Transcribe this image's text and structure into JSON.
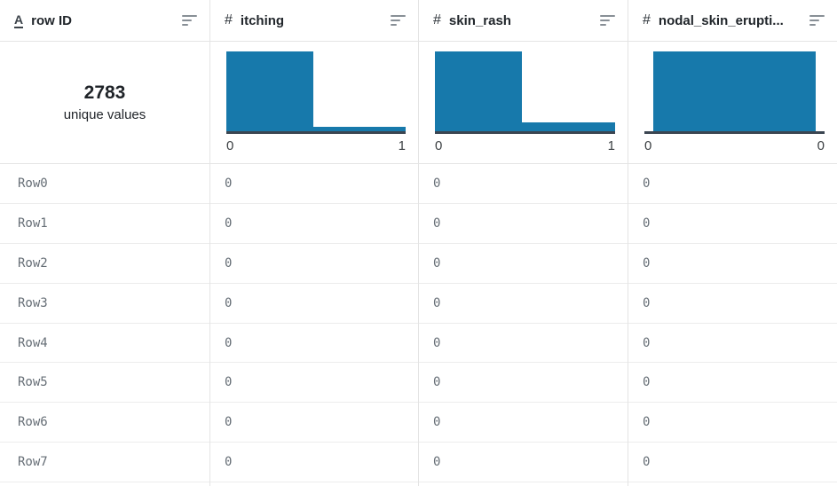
{
  "colors": {
    "bar_fill": "#1779ab",
    "axis_line": "#3b4551",
    "header_text": "#21262b",
    "cell_text": "#666e76",
    "grid_border": "#e4e4e4"
  },
  "icons": {
    "text_type_glyph": "A",
    "number_type_glyph": "#",
    "sort_icon": "bars-descending"
  },
  "table": {
    "columns": [
      {
        "id": "row_id",
        "type": "text",
        "label": "row ID",
        "summary": {
          "kind": "unique",
          "value": "2783",
          "caption": "unique values"
        },
        "cells": [
          "Row0",
          "Row1",
          "Row2",
          "Row3",
          "Row4",
          "Row5",
          "Row6",
          "Row7"
        ]
      },
      {
        "id": "itching",
        "type": "number",
        "label": "itching",
        "summary": {
          "kind": "histogram",
          "histogram": {
            "type": "bar",
            "tick_left": "0",
            "tick_right": "1",
            "bars": [
              {
                "x": 0,
                "w": 0.485,
                "h": 1.0
              },
              {
                "x": 0.485,
                "w": 0.515,
                "h": 0.055
              }
            ]
          }
        },
        "cells": [
          "0",
          "0",
          "0",
          "0",
          "0",
          "0",
          "0",
          "0"
        ]
      },
      {
        "id": "skin_rash",
        "type": "number",
        "label": "skin_rash",
        "summary": {
          "kind": "histogram",
          "histogram": {
            "type": "bar",
            "tick_left": "0",
            "tick_right": "1",
            "bars": [
              {
                "x": 0,
                "w": 0.485,
                "h": 1.0
              },
              {
                "x": 0.485,
                "w": 0.515,
                "h": 0.11
              }
            ]
          }
        },
        "cells": [
          "0",
          "0",
          "0",
          "0",
          "0",
          "0",
          "0",
          "0"
        ]
      },
      {
        "id": "nodal_skin_eruptions",
        "type": "number",
        "label": "nodal_skin_erupti...",
        "summary": {
          "kind": "histogram",
          "histogram": {
            "type": "bar",
            "tick_left": "0",
            "tick_right": "0",
            "bars": [
              {
                "x": 0.05,
                "w": 0.9,
                "h": 1.0
              }
            ]
          }
        },
        "cells": [
          "0",
          "0",
          "0",
          "0",
          "0",
          "0",
          "0",
          "0"
        ]
      }
    ]
  }
}
